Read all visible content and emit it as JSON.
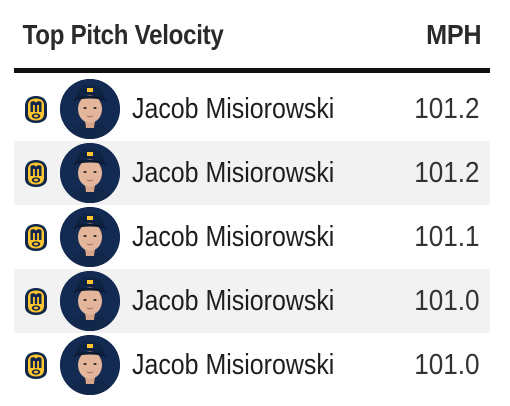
{
  "header": {
    "title": "Top Pitch Velocity",
    "unit": "MPH"
  },
  "colors": {
    "team_navy": "#12284b",
    "team_gold": "#ffc52f",
    "header_rule": "#111111",
    "alt_row": "#f2f2f2"
  },
  "rows": [
    {
      "player": "Jacob Misiorowski",
      "velocity": "101.2",
      "team_icon": "brewers-glove-icon"
    },
    {
      "player": "Jacob Misiorowski",
      "velocity": "101.2",
      "team_icon": "brewers-glove-icon"
    },
    {
      "player": "Jacob Misiorowski",
      "velocity": "101.1",
      "team_icon": "brewers-glove-icon"
    },
    {
      "player": "Jacob Misiorowski",
      "velocity": "101.0",
      "team_icon": "brewers-glove-icon"
    },
    {
      "player": "Jacob Misiorowski",
      "velocity": "101.0",
      "team_icon": "brewers-glove-icon"
    }
  ]
}
